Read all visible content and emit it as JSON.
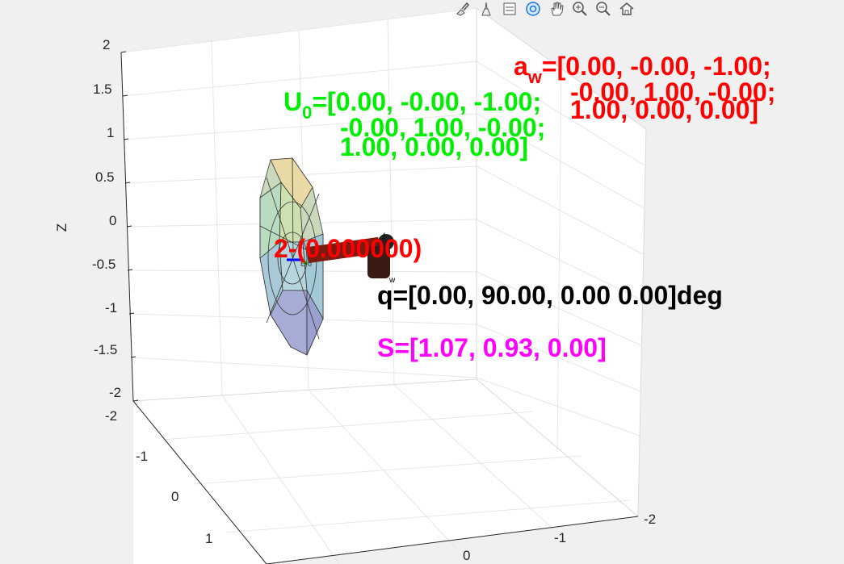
{
  "toolbar": {
    "buttons": [
      {
        "name": "brush-icon"
      },
      {
        "name": "data-tips-icon"
      },
      {
        "name": "legend-icon"
      },
      {
        "name": "rotate-3d-icon"
      },
      {
        "name": "pan-hand-icon"
      },
      {
        "name": "zoom-in-icon"
      },
      {
        "name": "zoom-out-icon"
      },
      {
        "name": "home-icon"
      }
    ]
  },
  "axes": {
    "zlabel": "Z",
    "z_ticks": [
      "2",
      "1.5",
      "1",
      "0.5",
      "0",
      "-0.5",
      "-1",
      "-1.5",
      "-2"
    ],
    "y_ticks": [
      "-2",
      "-1",
      "0",
      "1"
    ],
    "x_ticks": [
      "0",
      "-1",
      "-2"
    ]
  },
  "annotations": {
    "a_w": {
      "prefix": "a",
      "sub": "w",
      "lines": [
        "=[0.00, -0.00, -1.00;",
        "-0.00, 1.00, -0.00;",
        "1.00, 0.00, 0.00]"
      ],
      "color": "#ff0000"
    },
    "u0": {
      "prefix": "U",
      "sub": "0",
      "lines": [
        "=[0.00, -0.00, -1.00;",
        "-0.00, 1.00, -0.00;",
        "1.00, 0.00, 0.00]"
      ],
      "color": "#00ee00"
    },
    "point_label": {
      "text": "2-(0.000000)",
      "color": "#ff0000"
    },
    "q": {
      "text": "q=[0.00, 90.00, 0.00 0.00]deg",
      "color": "#000000"
    },
    "s": {
      "text": "S=[1.07, 0.93, 0.00]",
      "color": "#ff00ff"
    }
  }
}
